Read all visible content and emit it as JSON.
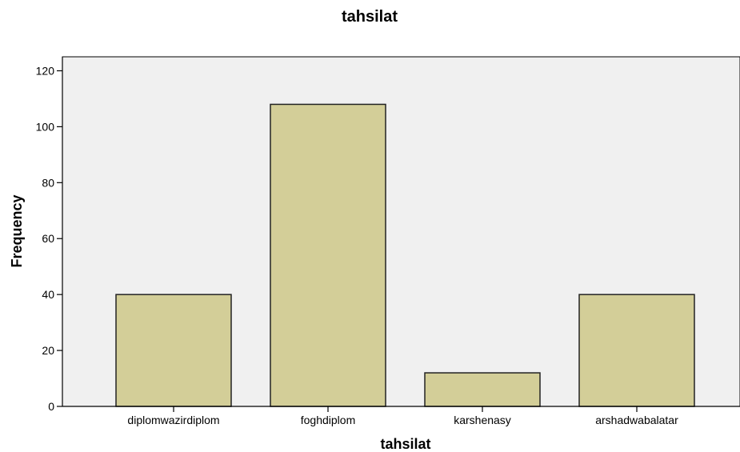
{
  "chart_data": {
    "type": "bar",
    "title": "tahsilat",
    "xlabel": "tahsilat",
    "ylabel": "Frequency",
    "categories": [
      "diplomwazirdiplom",
      "foghdiplom",
      "karshenasy",
      "arshadwabalatar"
    ],
    "values": [
      40,
      108,
      12,
      40
    ],
    "ylim": [
      0,
      125
    ],
    "yticks": [
      0,
      20,
      40,
      60,
      80,
      100,
      120
    ],
    "grid": false,
    "legend": "none",
    "colors": {
      "bar_fill": "#d3ce98",
      "bar_stroke": "#222222",
      "plot_background": "#f0f0f0",
      "axis": "#000000"
    }
  }
}
